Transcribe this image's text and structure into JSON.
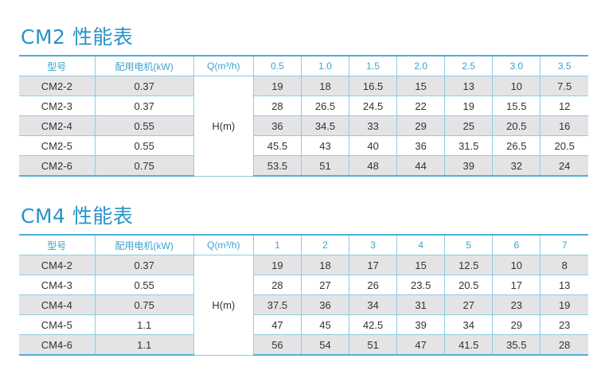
{
  "colors": {
    "title": "#2a93c9",
    "header_text": "#3aa3d0",
    "border": "#8fcbe3",
    "gray_row": "#e4e4e6"
  },
  "tables": [
    {
      "title": "CM2 性能表",
      "headers": {
        "model": "型号",
        "motor": "配用电机(kW)",
        "flow": "Q(m³/h)"
      },
      "flows": [
        "0.5",
        "1.0",
        "1.5",
        "2.0",
        "2.5",
        "3.0",
        "3.5"
      ],
      "head_label": "H(m)",
      "rows": [
        {
          "model": "CM2-2",
          "motor": "0.37",
          "heads": [
            "19",
            "18",
            "16.5",
            "15",
            "13",
            "10",
            "7.5"
          ]
        },
        {
          "model": "CM2-3",
          "motor": "0.37",
          "heads": [
            "28",
            "26.5",
            "24.5",
            "22",
            "19",
            "15.5",
            "12"
          ]
        },
        {
          "model": "CM2-4",
          "motor": "0.55",
          "heads": [
            "36",
            "34.5",
            "33",
            "29",
            "25",
            "20.5",
            "16"
          ]
        },
        {
          "model": "CM2-5",
          "motor": "0.55",
          "heads": [
            "45.5",
            "43",
            "40",
            "36",
            "31.5",
            "26.5",
            "20.5"
          ]
        },
        {
          "model": "CM2-6",
          "motor": "0.75",
          "heads": [
            "53.5",
            "51",
            "48",
            "44",
            "39",
            "32",
            "24"
          ]
        }
      ]
    },
    {
      "title": "CM4 性能表",
      "headers": {
        "model": "型号",
        "motor": "配用电机(kW)",
        "flow": "Q(m³/h)"
      },
      "flows": [
        "1",
        "2",
        "3",
        "4",
        "5",
        "6",
        "7"
      ],
      "head_label": "H(m)",
      "rows": [
        {
          "model": "CM4-2",
          "motor": "0.37",
          "heads": [
            "19",
            "18",
            "17",
            "15",
            "12.5",
            "10",
            "8"
          ]
        },
        {
          "model": "CM4-3",
          "motor": "0.55",
          "heads": [
            "28",
            "27",
            "26",
            "23.5",
            "20.5",
            "17",
            "13"
          ]
        },
        {
          "model": "CM4-4",
          "motor": "0.75",
          "heads": [
            "37.5",
            "36",
            "34",
            "31",
            "27",
            "23",
            "19"
          ]
        },
        {
          "model": "CM4-5",
          "motor": "1.1",
          "heads": [
            "47",
            "45",
            "42.5",
            "39",
            "34",
            "29",
            "23"
          ]
        },
        {
          "model": "CM4-6",
          "motor": "1.1",
          "heads": [
            "56",
            "54",
            "51",
            "47",
            "41.5",
            "35.5",
            "28"
          ]
        }
      ]
    }
  ]
}
